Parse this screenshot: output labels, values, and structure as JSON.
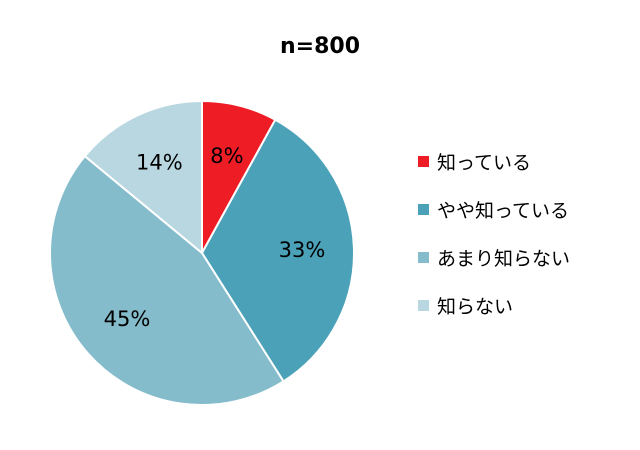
{
  "chart_data": {
    "type": "pie",
    "title": "n=800",
    "slices": [
      {
        "label": "知っている",
        "value": 8,
        "display": "8%",
        "color": "#ee1c25"
      },
      {
        "label": "やや知っている",
        "value": 33,
        "display": "33%",
        "color": "#4aa1b8"
      },
      {
        "label": "あまり知らない",
        "value": 45,
        "display": "45%",
        "color": "#84bccc"
      },
      {
        "label": "知らない",
        "value": 14,
        "display": "14%",
        "color": "#b9d7e1"
      }
    ],
    "legend_position": "right",
    "start_angle": "12 o'clock",
    "direction": "clockwise"
  }
}
